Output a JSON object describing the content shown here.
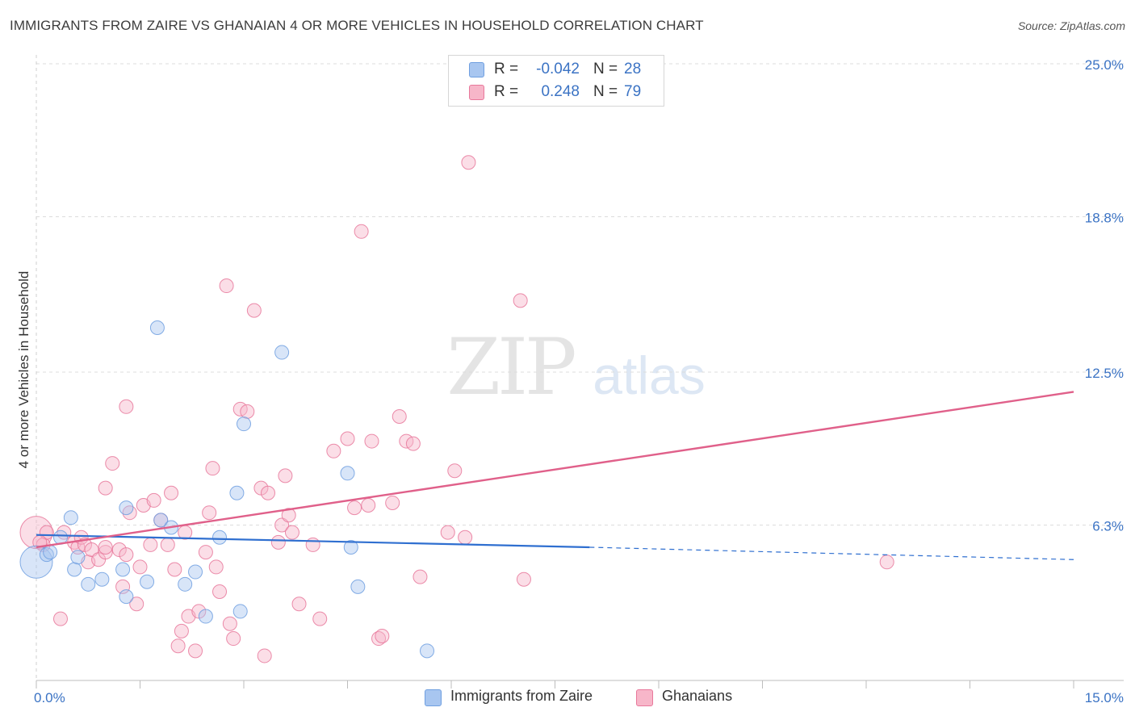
{
  "title": "IMMIGRANTS FROM ZAIRE VS GHANAIAN 4 OR MORE VEHICLES IN HOUSEHOLD CORRELATION CHART",
  "source": "Source: ZipAtlas.com",
  "watermark": {
    "zip": "ZIP",
    "atlas": "atlas"
  },
  "stats": [
    {
      "r_label": "R =",
      "r_value": "-0.042",
      "n_label": "N =",
      "n_value": "28",
      "color": "#a8c6f0"
    },
    {
      "r_label": "R =",
      "r_value": "0.248",
      "n_label": "N =",
      "n_value": "79",
      "color": "#f7b6c9"
    }
  ],
  "legend": [
    {
      "label": "Immigrants from Zaire",
      "color": "#a8c6f0"
    },
    {
      "label": "Ghanaians",
      "color": "#f7b6c9"
    }
  ],
  "chart_data": {
    "type": "scatter",
    "title": "IMMIGRANTS FROM ZAIRE VS GHANAIAN 4 OR MORE VEHICLES IN HOUSEHOLD CORRELATION CHART",
    "xlabel": "",
    "ylabel": "4 or more Vehicles in Household",
    "xlim": [
      0,
      15
    ],
    "ylim": [
      0,
      25
    ],
    "x_tick_labels": [
      "0.0%",
      "15.0%"
    ],
    "y_ticks": [
      6.3,
      12.5,
      18.8,
      25.0
    ],
    "y_tick_labels": [
      "6.3%",
      "12.5%",
      "18.8%",
      "25.0%"
    ],
    "grid": "horizontal dashed",
    "legend_position": "bottom-center",
    "series": [
      {
        "name": "Immigrants from Zaire",
        "color": "#6f9fe0",
        "fill": "#a8c6f0",
        "points": [
          [
            0.0,
            4.8
          ],
          [
            0.15,
            5.1
          ],
          [
            0.2,
            5.2
          ],
          [
            0.35,
            5.8
          ],
          [
            0.5,
            6.6
          ],
          [
            0.55,
            4.5
          ],
          [
            0.6,
            5.0
          ],
          [
            0.75,
            3.9
          ],
          [
            0.95,
            4.1
          ],
          [
            1.25,
            4.5
          ],
          [
            1.3,
            3.4
          ],
          [
            1.3,
            7.0
          ],
          [
            1.6,
            4.0
          ],
          [
            1.75,
            14.3
          ],
          [
            1.8,
            6.5
          ],
          [
            1.95,
            6.2
          ],
          [
            2.15,
            3.9
          ],
          [
            2.3,
            4.4
          ],
          [
            2.45,
            2.6
          ],
          [
            2.65,
            5.8
          ],
          [
            2.9,
            7.6
          ],
          [
            2.95,
            2.8
          ],
          [
            3.0,
            10.4
          ],
          [
            3.55,
            13.3
          ],
          [
            4.5,
            8.4
          ],
          [
            4.55,
            5.4
          ],
          [
            4.65,
            3.8
          ],
          [
            5.65,
            1.2
          ]
        ],
        "trend": {
          "x": [
            0,
            8.0
          ],
          "y": [
            5.9,
            5.4
          ],
          "dashed_to_x": 15,
          "dashed_to_y": 4.9
        }
      },
      {
        "name": "Ghanaians",
        "color": "#e8789b",
        "fill": "#f7b6c9",
        "points": [
          [
            0.0,
            6.0
          ],
          [
            0.1,
            5.5
          ],
          [
            0.15,
            6.0
          ],
          [
            0.35,
            2.5
          ],
          [
            0.4,
            6.0
          ],
          [
            0.55,
            5.6
          ],
          [
            0.6,
            5.4
          ],
          [
            0.65,
            5.8
          ],
          [
            0.7,
            5.5
          ],
          [
            0.75,
            4.8
          ],
          [
            0.8,
            5.3
          ],
          [
            0.9,
            4.9
          ],
          [
            1.0,
            5.2
          ],
          [
            1.0,
            5.4
          ],
          [
            1.0,
            7.8
          ],
          [
            1.1,
            8.8
          ],
          [
            1.2,
            5.3
          ],
          [
            1.25,
            3.8
          ],
          [
            1.3,
            5.1
          ],
          [
            1.3,
            11.1
          ],
          [
            1.35,
            6.8
          ],
          [
            1.45,
            3.1
          ],
          [
            1.5,
            4.6
          ],
          [
            1.55,
            7.1
          ],
          [
            1.65,
            5.5
          ],
          [
            1.7,
            7.3
          ],
          [
            1.8,
            6.5
          ],
          [
            1.9,
            5.5
          ],
          [
            1.95,
            7.6
          ],
          [
            2.0,
            4.5
          ],
          [
            2.05,
            1.4
          ],
          [
            2.1,
            2.0
          ],
          [
            2.15,
            6.0
          ],
          [
            2.2,
            2.6
          ],
          [
            2.3,
            1.2
          ],
          [
            2.35,
            2.8
          ],
          [
            2.45,
            5.2
          ],
          [
            2.5,
            6.8
          ],
          [
            2.55,
            8.6
          ],
          [
            2.6,
            4.6
          ],
          [
            2.65,
            3.6
          ],
          [
            2.75,
            16.0
          ],
          [
            2.8,
            2.3
          ],
          [
            2.85,
            1.7
          ],
          [
            2.95,
            11.0
          ],
          [
            3.05,
            10.9
          ],
          [
            3.15,
            15.0
          ],
          [
            3.25,
            7.8
          ],
          [
            3.3,
            1.0
          ],
          [
            3.35,
            7.6
          ],
          [
            3.5,
            5.6
          ],
          [
            3.55,
            6.3
          ],
          [
            3.6,
            8.3
          ],
          [
            3.65,
            6.7
          ],
          [
            3.7,
            6.0
          ],
          [
            3.8,
            3.1
          ],
          [
            4.0,
            5.5
          ],
          [
            4.1,
            2.5
          ],
          [
            4.3,
            9.3
          ],
          [
            4.5,
            9.8
          ],
          [
            4.6,
            7.0
          ],
          [
            4.7,
            18.2
          ],
          [
            4.8,
            7.1
          ],
          [
            4.85,
            9.7
          ],
          [
            4.95,
            1.7
          ],
          [
            5.0,
            1.8
          ],
          [
            5.15,
            7.2
          ],
          [
            5.25,
            10.7
          ],
          [
            5.35,
            9.7
          ],
          [
            5.45,
            9.6
          ],
          [
            5.55,
            4.2
          ],
          [
            5.95,
            6.0
          ],
          [
            6.05,
            8.5
          ],
          [
            6.2,
            5.8
          ],
          [
            6.25,
            21.0
          ],
          [
            7.0,
            15.4
          ],
          [
            7.05,
            4.1
          ],
          [
            12.3,
            4.8
          ],
          [
            0.05,
            5.6
          ]
        ],
        "trend": {
          "x": [
            0,
            15
          ],
          "y": [
            5.4,
            11.7
          ]
        }
      }
    ]
  }
}
